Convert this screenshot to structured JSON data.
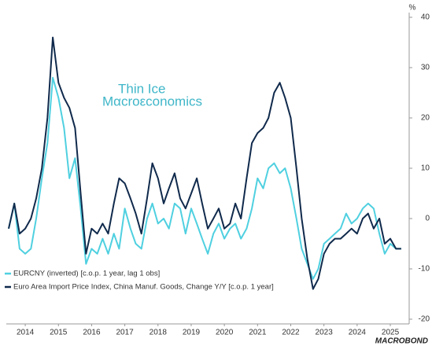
{
  "chart_data": {
    "type": "line",
    "logo": {
      "line1": "Thin Ice",
      "line2": "Mαcroεconomics"
    },
    "source_logo": "MACROBOND",
    "y_unit": "%",
    "x": [
      2014.0,
      2014.17,
      2014.33,
      2014.5,
      2014.67,
      2014.83,
      2015.0,
      2015.17,
      2015.33,
      2015.5,
      2015.67,
      2015.83,
      2016.0,
      2016.17,
      2016.33,
      2016.5,
      2016.67,
      2016.83,
      2017.0,
      2017.17,
      2017.33,
      2017.5,
      2017.67,
      2017.83,
      2018.0,
      2018.17,
      2018.33,
      2018.5,
      2018.67,
      2018.83,
      2019.0,
      2019.17,
      2019.33,
      2019.5,
      2019.67,
      2019.83,
      2020.0,
      2020.17,
      2020.33,
      2020.5,
      2020.67,
      2020.83,
      2021.0,
      2021.17,
      2021.33,
      2021.5,
      2021.67,
      2021.83,
      2022.0,
      2022.17,
      2022.33,
      2022.5,
      2022.67,
      2022.83,
      2023.0,
      2023.17,
      2023.33,
      2023.5,
      2023.67,
      2023.83,
      2024.0,
      2024.17,
      2024.33,
      2024.5,
      2024.67,
      2024.83,
      2025.0,
      2025.17,
      2025.33,
      2025.5,
      2025.67,
      2025.83
    ],
    "series": [
      {
        "name": "EURCNY (inverted) [c.o.p. 1 year, lag 1 obs]",
        "color": "#4fd0e0",
        "values": [
          -2,
          3,
          -6,
          -7,
          -6,
          0,
          8,
          15,
          28,
          24,
          18,
          8,
          12,
          2,
          -9,
          -6,
          -7,
          -4,
          -7,
          -3,
          -6,
          2,
          -2,
          -5,
          -6,
          0,
          3,
          -1,
          0,
          -2,
          3,
          2,
          -3,
          2,
          -1,
          -4,
          -7,
          -3,
          -1,
          -4,
          -2,
          -1,
          -4,
          -2,
          2,
          8,
          6,
          10,
          11,
          9,
          10,
          6,
          0,
          -6,
          -9,
          -12,
          -10,
          -5,
          -4,
          -3,
          -2,
          1,
          -1,
          0,
          2,
          3,
          2,
          -3,
          -7,
          -5,
          -6,
          -6
        ]
      },
      {
        "name": "Euro Area Import Price Index, China Manuf. Goods, Change Y/Y [c.o.p. 1 year]",
        "color": "#102a4c",
        "values": [
          -2,
          3,
          -3,
          -2,
          0,
          4,
          10,
          20,
          36,
          27,
          24,
          22,
          18,
          5,
          -7,
          -2,
          -3,
          -1,
          -3,
          3,
          8,
          7,
          4,
          1,
          -3,
          4,
          11,
          8,
          3,
          6,
          9,
          4,
          2,
          5,
          8,
          3,
          -2,
          0,
          2,
          -2,
          -1,
          3,
          0,
          8,
          15,
          17,
          18,
          20,
          25,
          27,
          24,
          20,
          10,
          0,
          -8,
          -14,
          -12,
          -7,
          -5,
          -4,
          -4,
          -3,
          -2,
          -3,
          0,
          1,
          -2,
          0,
          -5,
          -4,
          -6,
          -6
        ]
      }
    ],
    "xlim": [
      2014.0,
      2025.95
    ],
    "xticks": [
      {
        "value": 2014.5,
        "label": "2014"
      },
      {
        "value": 2015.5,
        "label": "2015"
      },
      {
        "value": 2016.5,
        "label": "2016"
      },
      {
        "value": 2017.5,
        "label": "2017"
      },
      {
        "value": 2018.5,
        "label": "2018"
      },
      {
        "value": 2019.5,
        "label": "2019"
      },
      {
        "value": 2020.5,
        "label": "2020"
      },
      {
        "value": 2021.5,
        "label": "2021"
      },
      {
        "value": 2022.5,
        "label": "2022"
      },
      {
        "value": 2023.5,
        "label": "2023"
      },
      {
        "value": 2024.5,
        "label": "2024"
      },
      {
        "value": 2025.5,
        "label": "2025"
      }
    ],
    "ylim": [
      -20,
      40
    ],
    "yticks": [
      -20,
      -10,
      0,
      10,
      20,
      30,
      40
    ],
    "grid": false,
    "legend": "lower left"
  }
}
